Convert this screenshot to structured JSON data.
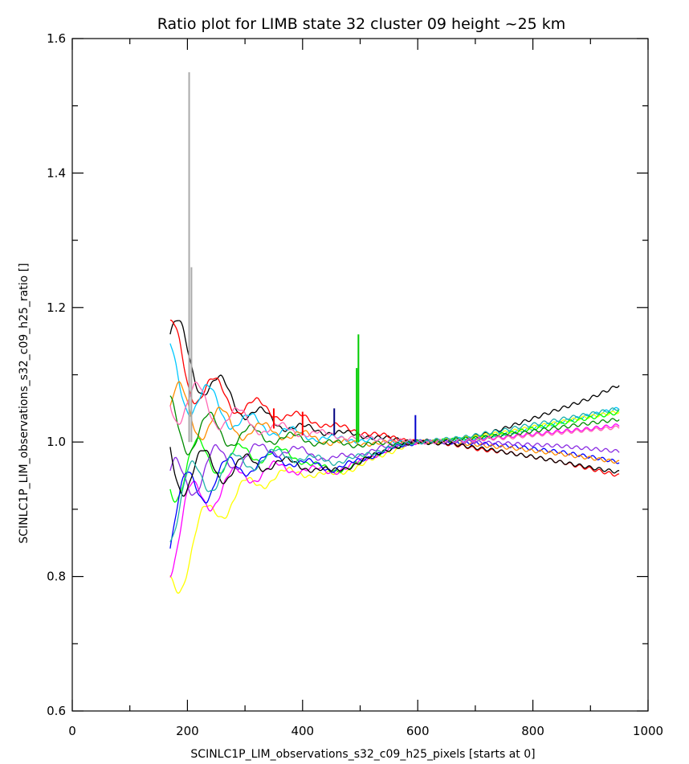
{
  "chart_data": {
    "type": "line",
    "title": "Ratio plot for LIMB state 32 cluster 09 height ~25 km",
    "xlabel": "SCINLC1P_LIM_observations_s32_c09_h25_pixels [starts at 0]",
    "ylabel": "SCINLC1P_LIM_observations_s32_c09_h25_ratio []",
    "xlim": [
      0,
      1000
    ],
    "ylim": [
      0.6,
      1.6
    ],
    "x_ticks": [
      0,
      200,
      400,
      600,
      800,
      1000
    ],
    "y_ticks": [
      0.6,
      0.8,
      1.0,
      1.2,
      1.4,
      1.6
    ],
    "x_tick_labels": [
      "0",
      "200",
      "400",
      "600",
      "800",
      "1000"
    ],
    "y_tick_labels": [
      "0.6",
      "0.8",
      "1.0",
      "1.2",
      "1.4",
      "1.6"
    ],
    "x_minor_ticks": [
      100,
      300,
      500,
      700,
      900
    ],
    "y_minor_ticks": [
      0.7,
      0.9,
      1.1,
      1.3,
      1.5
    ],
    "grid": false,
    "x_range_of_data": [
      170,
      950
    ],
    "series": [
      {
        "color": "#000000",
        "x": [
          170,
          200,
          250,
          300,
          350,
          400,
          450,
          500,
          550,
          600,
          650,
          700,
          750,
          800,
          850,
          900,
          950
        ],
        "y": [
          1.16,
          1.12,
          1.08,
          1.05,
          1.03,
          1.02,
          1.015,
          1.01,
          1.005,
          1.0,
          1.003,
          1.008,
          1.02,
          1.035,
          1.05,
          1.065,
          1.085
        ]
      },
      {
        "color": "#ff0000",
        "x": [
          170,
          200,
          250,
          300,
          350,
          400,
          450,
          500,
          550,
          600,
          650,
          700,
          750,
          800,
          850,
          900,
          950
        ],
        "y": [
          1.14,
          1.1,
          1.07,
          1.055,
          1.045,
          1.035,
          1.025,
          1.015,
          1.008,
          1.0,
          0.998,
          0.99,
          0.985,
          0.978,
          0.97,
          0.96,
          0.95
        ]
      },
      {
        "color": "#00c8ff",
        "x": [
          170,
          200,
          250,
          300,
          350,
          400,
          450,
          500,
          550,
          600,
          650,
          700,
          750,
          800,
          850,
          900,
          950
        ],
        "y": [
          1.1,
          1.08,
          1.05,
          1.03,
          1.02,
          1.01,
          1.005,
          1.003,
          1.001,
          1.0,
          1.002,
          1.006,
          1.012,
          1.02,
          1.03,
          1.04,
          1.05
        ]
      },
      {
        "color": "#ffff00",
        "x": [
          170,
          200,
          250,
          300,
          350,
          400,
          450,
          500,
          550,
          600,
          650,
          700,
          750,
          800,
          850,
          900,
          950
        ],
        "y": [
          0.78,
          0.84,
          0.9,
          0.93,
          0.95,
          0.955,
          0.95,
          0.965,
          0.985,
          1.0,
          1.003,
          1.008,
          1.014,
          1.022,
          1.03,
          1.038,
          1.045
        ]
      },
      {
        "color": "#00ff00",
        "x": [
          170,
          200,
          250,
          300,
          350,
          400,
          450,
          500,
          550,
          600,
          650,
          700,
          750,
          800,
          850,
          900,
          950
        ],
        "y": [
          0.95,
          0.97,
          0.975,
          0.98,
          0.985,
          0.975,
          0.955,
          0.97,
          0.99,
          1.0,
          1.002,
          1.006,
          1.012,
          1.02,
          1.028,
          1.036,
          1.044
        ]
      },
      {
        "color": "#ff00ff",
        "x": [
          170,
          200,
          250,
          300,
          350,
          400,
          450,
          500,
          550,
          600,
          650,
          700,
          750,
          800,
          850,
          900,
          950
        ],
        "y": [
          0.85,
          0.9,
          0.93,
          0.95,
          0.96,
          0.96,
          0.955,
          0.97,
          0.99,
          1.0,
          1.001,
          1.004,
          1.008,
          1.012,
          1.016,
          1.02,
          1.025
        ]
      },
      {
        "color": "#0000ff",
        "x": [
          170,
          200,
          250,
          300,
          350,
          400,
          450,
          500,
          550,
          600,
          650,
          700,
          750,
          800,
          850,
          900,
          950
        ],
        "y": [
          0.88,
          0.92,
          0.95,
          0.965,
          0.975,
          0.97,
          0.96,
          0.972,
          0.99,
          1.0,
          1.0,
          0.998,
          0.995,
          0.99,
          0.985,
          0.978,
          0.97
        ]
      },
      {
        "color": "#ff8c00",
        "x": [
          170,
          200,
          250,
          300,
          350,
          400,
          450,
          500,
          550,
          600,
          650,
          700,
          750,
          800,
          850,
          900,
          950
        ],
        "y": [
          1.05,
          1.04,
          1.03,
          1.02,
          1.015,
          1.01,
          1.0,
          0.998,
          0.999,
          1.0,
          0.999,
          0.996,
          0.992,
          0.987,
          0.982,
          0.976,
          0.97
        ]
      },
      {
        "color": "#8a2be2",
        "x": [
          170,
          200,
          250,
          300,
          350,
          400,
          450,
          500,
          550,
          600,
          650,
          700,
          750,
          800,
          850,
          900,
          950
        ],
        "y": [
          0.92,
          0.95,
          0.97,
          0.98,
          0.99,
          0.985,
          0.975,
          0.982,
          0.994,
          1.0,
          1.0,
          1.0,
          0.998,
          0.996,
          0.994,
          0.99,
          0.986
        ]
      },
      {
        "color": "#008b00",
        "x": [
          170,
          200,
          250,
          300,
          350,
          400,
          450,
          500,
          550,
          600,
          650,
          700,
          750,
          800,
          850,
          900,
          950
        ],
        "y": [
          1.02,
          1.02,
          1.015,
          1.01,
          1.008,
          1.004,
          0.998,
          0.996,
          0.998,
          1.0,
          1.002,
          1.006,
          1.01,
          1.016,
          1.022,
          1.028,
          1.034
        ]
      },
      {
        "color": "#000000",
        "x": [
          170,
          200,
          250,
          300,
          350,
          400,
          450,
          500,
          550,
          600,
          650,
          700,
          750,
          800,
          850,
          900,
          950
        ],
        "y": [
          0.97,
          0.96,
          0.96,
          0.965,
          0.97,
          0.965,
          0.955,
          0.97,
          0.99,
          1.0,
          0.998,
          0.992,
          0.985,
          0.978,
          0.97,
          0.962,
          0.955
        ]
      },
      {
        "color": "#ff69b4",
        "x": [
          170,
          200,
          250,
          300,
          350,
          400,
          450,
          500,
          550,
          600,
          650,
          700,
          750,
          800,
          850,
          900,
          950
        ],
        "y": [
          1.08,
          1.06,
          1.045,
          1.03,
          1.02,
          1.015,
          1.01,
          1.006,
          1.003,
          1.0,
          1.001,
          1.003,
          1.006,
          1.01,
          1.014,
          1.018,
          1.022
        ]
      },
      {
        "color": "#20b2aa",
        "x": [
          170,
          200,
          250,
          300,
          350,
          400,
          450,
          500,
          550,
          600,
          650,
          700,
          750,
          800,
          850,
          900,
          950
        ],
        "y": [
          0.9,
          0.93,
          0.955,
          0.97,
          0.98,
          0.978,
          0.97,
          0.978,
          0.992,
          1.0,
          1.004,
          1.01,
          1.018,
          1.026,
          1.034,
          1.042,
          1.05
        ]
      }
    ],
    "spikes": [
      {
        "color": "#aaaaaa",
        "x": 203,
        "y_from": 1.0,
        "y_to": 1.55
      },
      {
        "color": "#aaaaaa",
        "x": 207,
        "y_from": 1.0,
        "y_to": 1.26
      },
      {
        "color": "#00cc00",
        "x": 497,
        "y_from": 1.0,
        "y_to": 1.16
      },
      {
        "color": "#00cc00",
        "x": 494,
        "y_from": 1.0,
        "y_to": 1.11
      },
      {
        "color": "#0000cc",
        "x": 596,
        "y_from": 1.0,
        "y_to": 1.04
      },
      {
        "color": "#000080",
        "x": 455,
        "y_from": 1.01,
        "y_to": 1.05
      },
      {
        "color": "#ff0000",
        "x": 400,
        "y_from": 1.01,
        "y_to": 1.045
      },
      {
        "color": "#ff0000",
        "x": 350,
        "y_from": 1.02,
        "y_to": 1.05
      }
    ]
  }
}
